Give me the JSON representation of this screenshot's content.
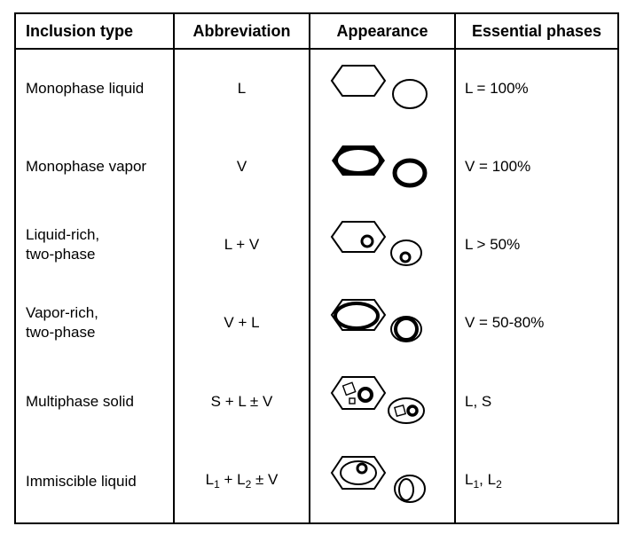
{
  "table": {
    "headers": {
      "inclusion_type": "Inclusion type",
      "abbreviation": "Abbreviation",
      "appearance": "Appearance",
      "essential_phases": "Essential phases"
    },
    "rows": [
      {
        "type_line1": "Monophase liquid",
        "type_line2": "",
        "abbr": "L",
        "phases": "L = 100%"
      },
      {
        "type_line1": "Monophase vapor",
        "type_line2": "",
        "abbr": "V",
        "phases": "V = 100%"
      },
      {
        "type_line1": "Liquid-rich,",
        "type_line2": "two-phase",
        "abbr": "L + V",
        "phases": "L > 50%"
      },
      {
        "type_line1": "Vapor-rich,",
        "type_line2": "two-phase",
        "abbr": "V + L",
        "phases": "V = 50-80%"
      },
      {
        "type_line1": "Multiphase solid",
        "type_line2": "",
        "abbr": "S + L ± V",
        "phases": "L, S"
      },
      {
        "type_line1": "Immiscible liquid",
        "type_line2": "",
        "abbr_parts": {
          "a": "L",
          "a_sub": "1",
          "b": " + L",
          "b_sub": "2",
          "c": " ± V"
        },
        "phases_parts": {
          "a": "L",
          "a_sub": "1",
          "b": ", L",
          "b_sub": "2"
        }
      }
    ]
  }
}
